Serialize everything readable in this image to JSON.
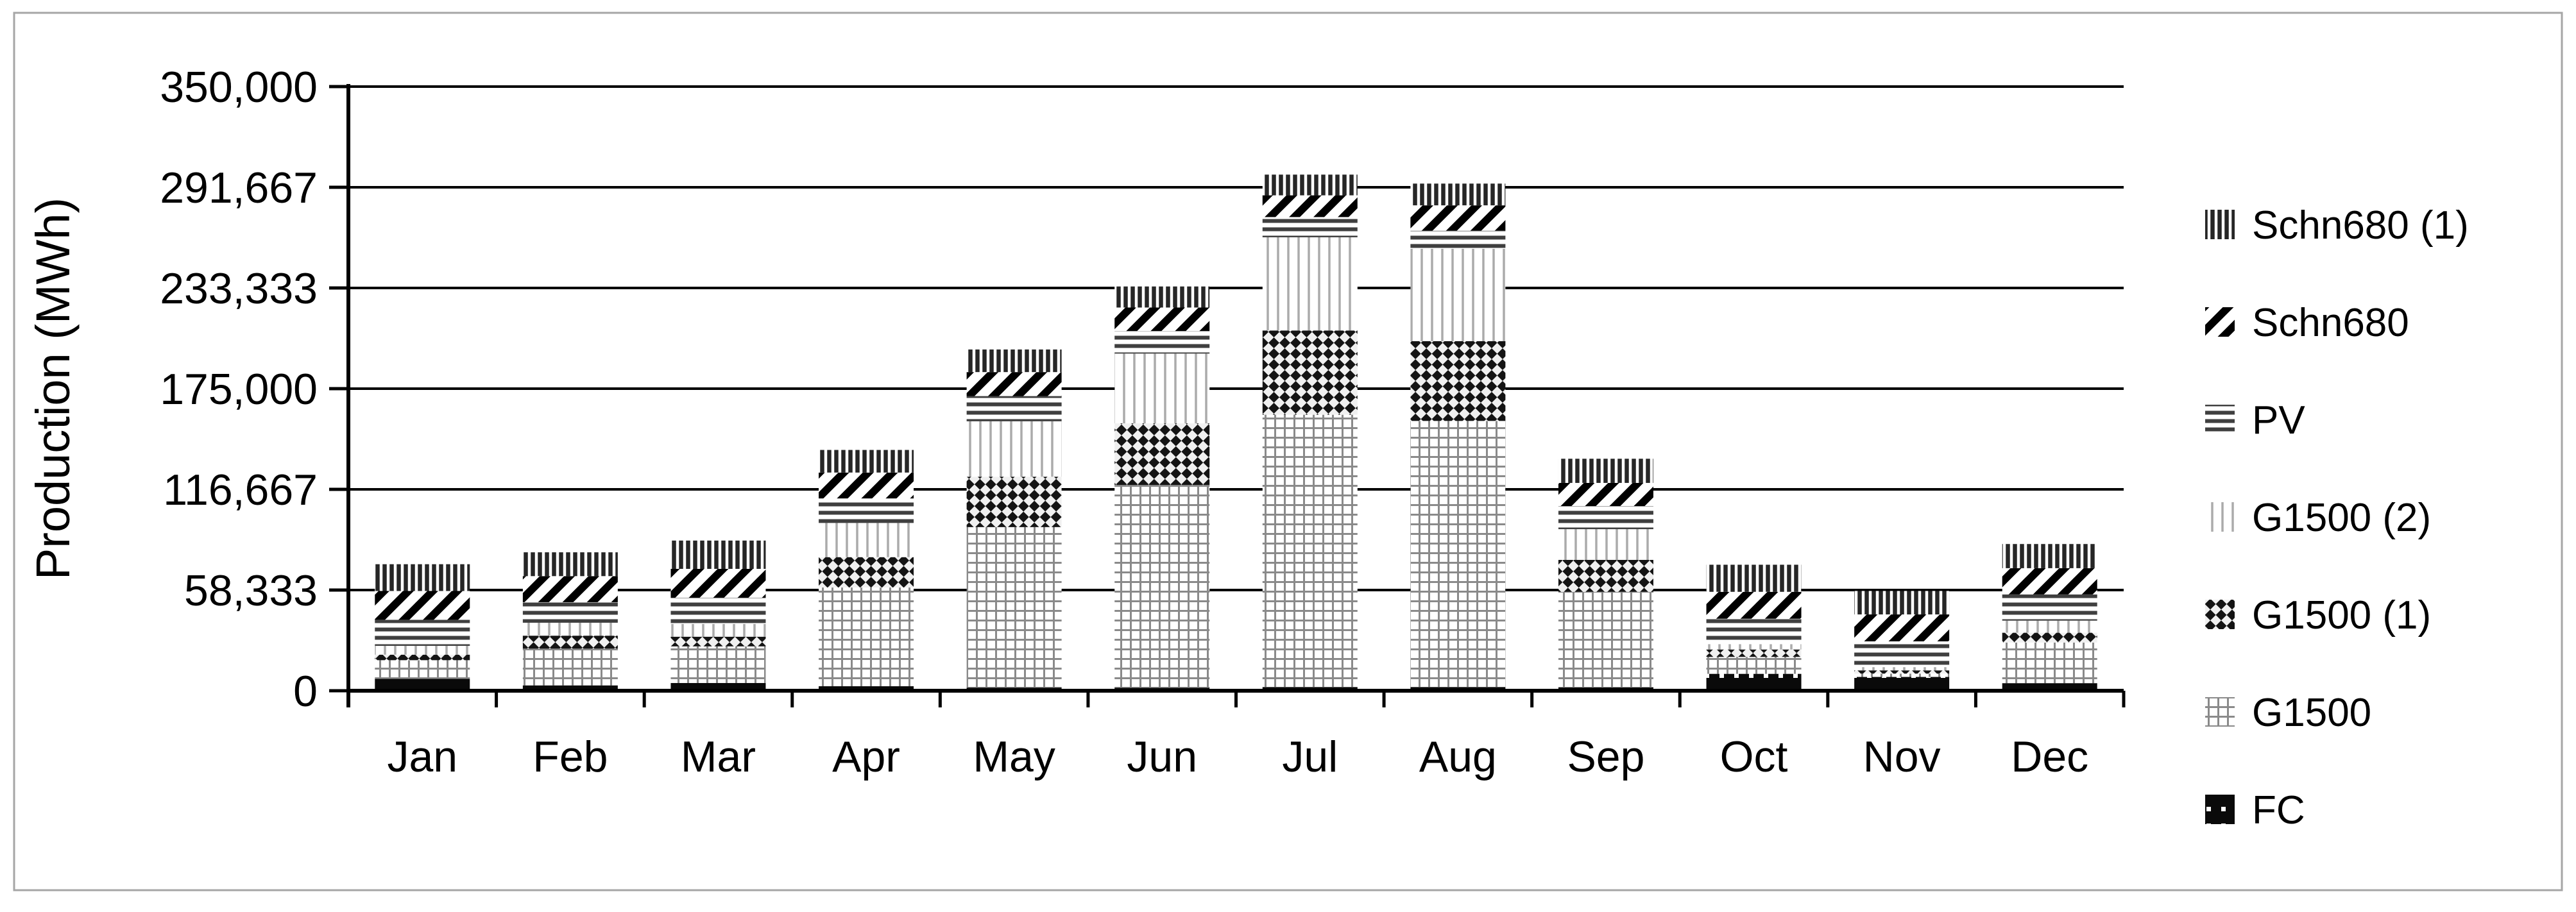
{
  "page": {
    "background": "#ffffff",
    "frame_border_color": "#a6a6a6"
  },
  "chart_data": {
    "type": "bar",
    "stacked": true,
    "title": "",
    "xlabel": "",
    "ylabel": "Production (MWh)",
    "ylim": [
      0,
      350000
    ],
    "grid": true,
    "gridline_color": "#000000",
    "axis_color": "#000000",
    "text_color": "#000000",
    "y_ticks": [
      {
        "value": 0,
        "label": "0"
      },
      {
        "value": 58333,
        "label": "58,333"
      },
      {
        "value": 116667,
        "label": "116,667"
      },
      {
        "value": 175000,
        "label": "175,000"
      },
      {
        "value": 233333,
        "label": "233,333"
      },
      {
        "value": 291667,
        "label": "291,667"
      },
      {
        "value": 350000,
        "label": "350,000"
      }
    ],
    "categories": [
      "Jan",
      "Feb",
      "Mar",
      "Apr",
      "May",
      "Jun",
      "Jul",
      "Aug",
      "Sep",
      "Oct",
      "Nov",
      "Dec"
    ],
    "series_bottom_to_top": [
      {
        "name": "FC",
        "pattern": "black-with-white-dots",
        "values": [
          6900,
          3100,
          4500,
          2600,
          1800,
          1700,
          2100,
          2100,
          1900,
          9800,
          8000,
          4400
        ]
      },
      {
        "name": "G1500",
        "pattern": "gray-grid",
        "values": [
          10800,
          21300,
          21200,
          57200,
          93000,
          117500,
          157800,
          154200,
          55400,
          9800,
          1900,
          23500
        ]
      },
      {
        "name": "G1500 (1)",
        "pattern": "dark-diamond-weave",
        "values": [
          3200,
          7500,
          5600,
          17600,
          29200,
          35700,
          48800,
          46200,
          18500,
          4300,
          1900,
          5700
        ]
      },
      {
        "name": "G1500 (2)",
        "pattern": "light-vertical-lines",
        "values": [
          5100,
          7500,
          7400,
          19800,
          32100,
          40400,
          54000,
          53500,
          17800,
          3100,
          1900,
          7000
        ]
      },
      {
        "name": "PV",
        "pattern": "horizontal-stripes",
        "values": [
          15100,
          11900,
          15200,
          14200,
          14600,
          13100,
          11700,
          10500,
          13400,
          14700,
          14900,
          15200
        ]
      },
      {
        "name": "Schn680",
        "pattern": "diagonal-stripes",
        "values": [
          16700,
          15100,
          16700,
          15000,
          13900,
          13600,
          12600,
          14700,
          13400,
          15600,
          15600,
          15200
        ]
      },
      {
        "name": "Schn680 (1)",
        "pattern": "dense-vertical-stripes",
        "values": [
          15500,
          13800,
          16400,
          13100,
          13100,
          12200,
          12000,
          12600,
          14000,
          15700,
          13600,
          14000
        ]
      }
    ],
    "legend": {
      "position": "right",
      "order_top_to_bottom": [
        "Schn680 (1)",
        "Schn680",
        "PV",
        "G1500 (2)",
        "G1500 (1)",
        "G1500",
        "FC"
      ]
    }
  }
}
